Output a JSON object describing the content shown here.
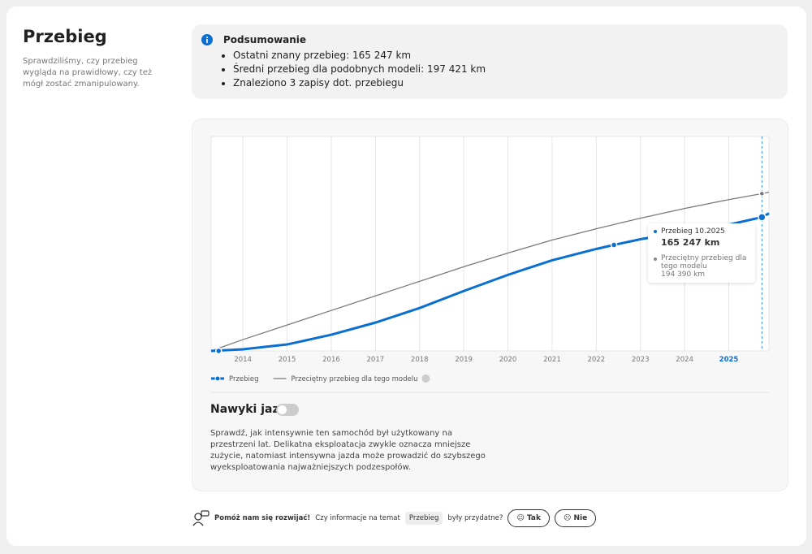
{
  "summary_section": {
    "title": "Przebieg",
    "description": "Sprawdziliśmy, czy przebieg wygląda na prawidłowy, czy też mógł zostać zmanipulowany."
  },
  "summary_box": {
    "title": "Podsumowanie",
    "items": [
      "Ostatni znany przebieg: 165 247 km",
      "Średni przebieg dla podobnych modeli: 197 421 km",
      "Znaleziono 3 zapisy dot. przebiegu"
    ]
  },
  "chart_data": {
    "type": "line",
    "xlim": [
      2013.28,
      2025.91
    ],
    "ylim": [
      0,
      265000
    ],
    "xticks": [
      2014,
      2015,
      2016,
      2017,
      2018,
      2019,
      2020,
      2021,
      2022,
      2023,
      2024,
      2025
    ],
    "grid": true,
    "legend": "bottom-left",
    "series": [
      {
        "name": "Przebieg",
        "color": "#0a6fd1",
        "x": [
          2013.28,
          2014,
          2015,
          2016,
          2017,
          2018,
          2019,
          2020,
          2021,
          2022,
          2022.4,
          2023,
          2024,
          2025,
          2025.75,
          2025.91
        ],
        "values": [
          0,
          2000,
          8000,
          20000,
          35000,
          53000,
          74000,
          94000,
          112000,
          126000,
          131000,
          138000,
          147000,
          156000,
          165247,
          170000
        ]
      },
      {
        "name": "Przeciętny przebieg dla tego modelu",
        "color": "#7a7a7a",
        "x": [
          2013.28,
          2014,
          2015,
          2016,
          2017,
          2018,
          2019,
          2020,
          2021,
          2022,
          2023,
          2024,
          2025,
          2025.75,
          2025.91
        ],
        "values": [
          0,
          14000,
          32000,
          50000,
          68000,
          86000,
          104000,
          121000,
          137000,
          151000,
          164000,
          176000,
          187000,
          194390,
          196000
        ]
      }
    ],
    "records": {
      "x": [
        2013.45,
        2022.4
      ],
      "values": [
        0,
        131000
      ]
    },
    "tooltip": {
      "x": 2025.75,
      "title": "Przebieg 10.2025",
      "average_label": "Przeciętny przebieg dla tego modelu",
      "values": [
        165247,
        194390
      ],
      "value_labels": [
        "165 247 km",
        "194 390 km"
      ]
    }
  },
  "habits": {
    "title": "Nawyki jazdy",
    "text": "Sprawdź, jak intensywnie ten samochód był użytkowany na przestrzeni lat. Delikatna eksploatacja zwykle oznacza mniejsze zużycie, natomiast intensywna jazda może prowadzić do szybszego wyeksploatowania najważniejszych podzespołów."
  },
  "feedback": {
    "prompt": "Pomóż nam się rozwijać!",
    "question_start": "Czy informacje na temat",
    "topic": "Przebieg",
    "question_end": "były przydatne?",
    "yes": "Tak",
    "no": "Nie"
  }
}
